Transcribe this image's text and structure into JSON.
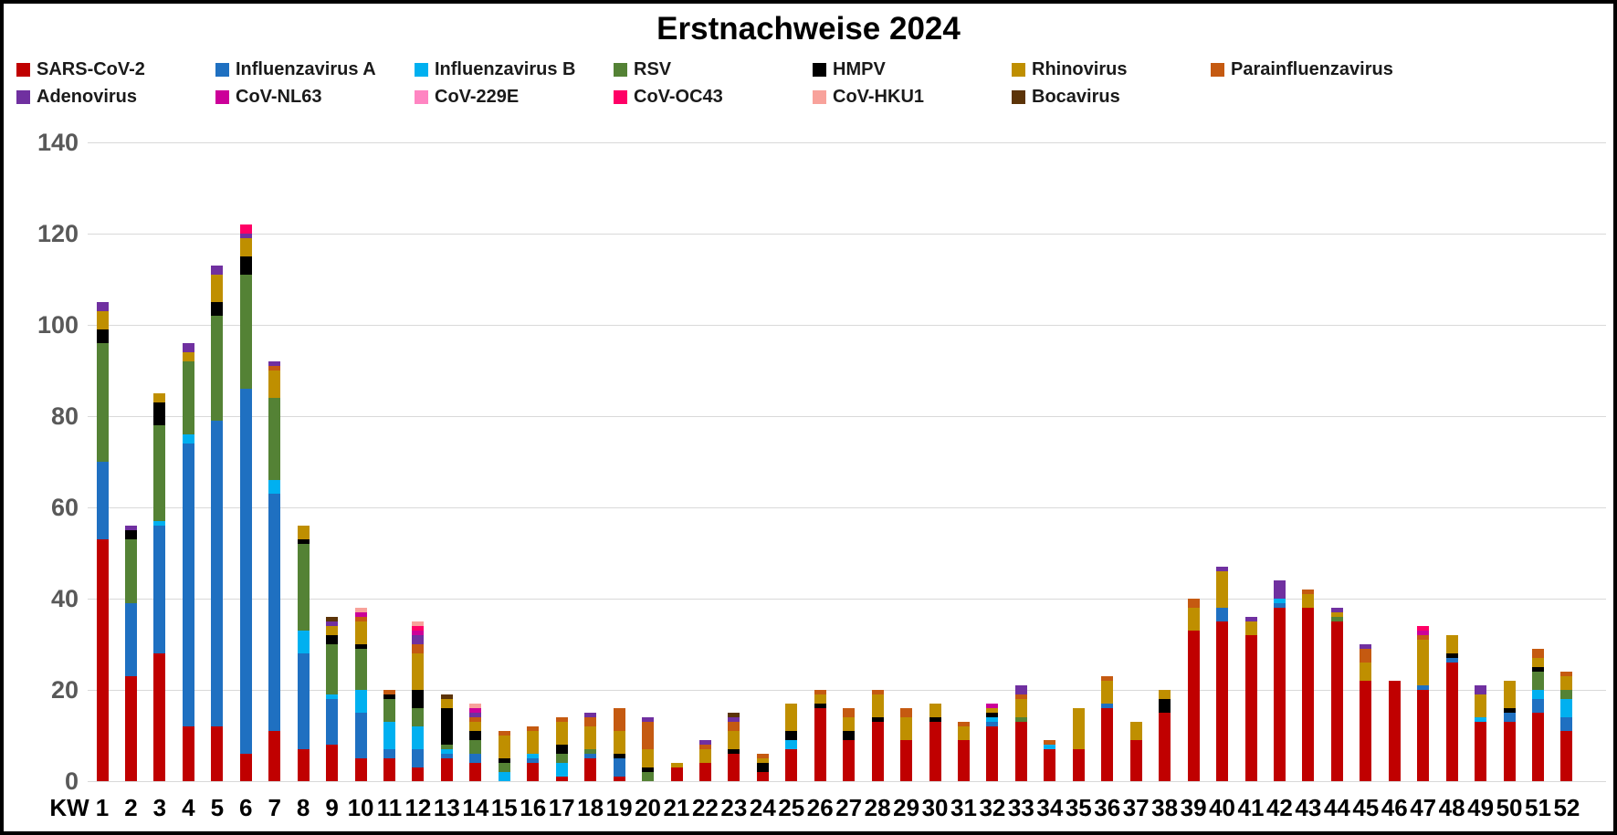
{
  "title": "Erstnachweise 2024",
  "y_axis": {
    "min": 0,
    "max": 140,
    "step": 20,
    "ticks": [
      0,
      20,
      40,
      60,
      80,
      100,
      120,
      140
    ]
  },
  "x_axis": {
    "prefix": "KW",
    "weeks": [
      1,
      2,
      3,
      4,
      5,
      6,
      7,
      8,
      9,
      10,
      11,
      12,
      13,
      14,
      15,
      16,
      17,
      18,
      19,
      20,
      21,
      22,
      23,
      24,
      25,
      26,
      27,
      28,
      29,
      30,
      31,
      32,
      33,
      34,
      35,
      36,
      37,
      38,
      39,
      40,
      41,
      42,
      43,
      44,
      45,
      46,
      47,
      48,
      49,
      50,
      51,
      52
    ]
  },
  "colors": {
    "gridline": "#d9d9d9",
    "y_label": "#595959",
    "x_label": "#000000"
  },
  "chart_data": {
    "type": "bar",
    "stacked": true,
    "title": "Erstnachweise 2024",
    "xlabel": "KW",
    "ylabel": "",
    "ylim": [
      0,
      140
    ],
    "grid": true,
    "legend_position": "top",
    "categories": [
      1,
      2,
      3,
      4,
      5,
      6,
      7,
      8,
      9,
      10,
      11,
      12,
      13,
      14,
      15,
      16,
      17,
      18,
      19,
      20,
      21,
      22,
      23,
      24,
      25,
      26,
      27,
      28,
      29,
      30,
      31,
      32,
      33,
      34,
      35,
      36,
      37,
      38,
      39,
      40,
      41,
      42,
      43,
      44,
      45,
      46,
      47,
      48,
      49,
      50,
      51,
      52
    ],
    "series": [
      {
        "name": "SARS-CoV-2",
        "color": "#C00000",
        "values": [
          53,
          23,
          28,
          12,
          12,
          6,
          11,
          7,
          8,
          5,
          5,
          3,
          5,
          4,
          0,
          4,
          1,
          5,
          1,
          0,
          3,
          4,
          6,
          2,
          7,
          16,
          9,
          13,
          9,
          13,
          9,
          12,
          13,
          7,
          7,
          16,
          9,
          15,
          33,
          35,
          32,
          38,
          38,
          35,
          22,
          22,
          20,
          26,
          13,
          13,
          15,
          11
        ]
      },
      {
        "name": "Influenzavirus A",
        "color": "#1F70C1",
        "values": [
          17,
          16,
          28,
          62,
          67,
          80,
          52,
          21,
          10,
          10,
          2,
          4,
          1,
          2,
          0,
          1,
          0,
          1,
          4,
          0,
          0,
          0,
          0,
          0,
          0,
          0,
          0,
          0,
          0,
          0,
          0,
          1,
          0,
          0,
          0,
          1,
          0,
          0,
          0,
          3,
          0,
          1,
          0,
          0,
          0,
          0,
          1,
          1,
          0,
          2,
          3,
          3
        ]
      },
      {
        "name": "Influenzavirus B",
        "color": "#00B0F0",
        "values": [
          0,
          0,
          1,
          2,
          0,
          0,
          3,
          5,
          1,
          5,
          6,
          5,
          1,
          0,
          2,
          1,
          3,
          0,
          0,
          0,
          0,
          0,
          0,
          0,
          2,
          0,
          0,
          0,
          0,
          0,
          0,
          1,
          0,
          1,
          0,
          0,
          0,
          0,
          0,
          0,
          0,
          1,
          0,
          0,
          0,
          0,
          0,
          0,
          1,
          0,
          2,
          4
        ]
      },
      {
        "name": "RSV",
        "color": "#548235",
        "values": [
          26,
          14,
          21,
          16,
          23,
          25,
          18,
          19,
          11,
          9,
          5,
          4,
          1,
          3,
          2,
          0,
          2,
          1,
          0,
          2,
          0,
          0,
          0,
          0,
          0,
          0,
          0,
          0,
          0,
          0,
          0,
          0,
          1,
          0,
          0,
          0,
          0,
          0,
          0,
          0,
          0,
          0,
          0,
          1,
          0,
          0,
          0,
          0,
          0,
          0,
          4,
          2
        ]
      },
      {
        "name": "HMPV",
        "color": "#000000",
        "values": [
          3,
          2,
          5,
          0,
          3,
          4,
          0,
          1,
          2,
          1,
          1,
          4,
          8,
          2,
          1,
          0,
          2,
          0,
          1,
          1,
          0,
          0,
          1,
          2,
          2,
          1,
          2,
          1,
          0,
          1,
          0,
          1,
          0,
          0,
          0,
          0,
          0,
          3,
          0,
          0,
          0,
          0,
          0,
          0,
          0,
          0,
          0,
          1,
          0,
          1,
          1,
          0
        ]
      },
      {
        "name": "Rhinovirus",
        "color": "#BF8F00",
        "values": [
          4,
          0,
          2,
          2,
          6,
          4,
          6,
          3,
          2,
          5,
          0,
          8,
          2,
          2,
          5,
          5,
          5,
          5,
          5,
          4,
          1,
          3,
          4,
          1,
          6,
          2,
          3,
          5,
          5,
          3,
          3,
          1,
          4,
          0,
          9,
          5,
          4,
          2,
          5,
          8,
          3,
          0,
          3,
          1,
          4,
          0,
          10,
          4,
          5,
          6,
          2,
          3
        ]
      },
      {
        "name": "Parainfluenzavirus",
        "color": "#C55A11",
        "values": [
          0,
          0,
          0,
          0,
          0,
          0,
          1,
          0,
          0,
          1,
          1,
          2,
          0,
          1,
          1,
          1,
          1,
          2,
          5,
          6,
          0,
          1,
          2,
          1,
          0,
          1,
          2,
          1,
          2,
          0,
          1,
          0,
          1,
          1,
          0,
          1,
          0,
          0,
          2,
          0,
          0,
          0,
          1,
          0,
          3,
          0,
          1,
          0,
          0,
          0,
          2,
          1
        ]
      },
      {
        "name": "Adenovirus",
        "color": "#7030A0",
        "values": [
          2,
          1,
          0,
          2,
          2,
          1,
          1,
          0,
          1,
          0,
          0,
          2,
          0,
          1,
          0,
          0,
          0,
          1,
          0,
          1,
          0,
          1,
          1,
          0,
          0,
          0,
          0,
          0,
          0,
          0,
          0,
          0,
          2,
          0,
          0,
          0,
          0,
          0,
          0,
          1,
          1,
          4,
          0,
          1,
          1,
          0,
          0,
          0,
          2,
          0,
          0,
          0
        ]
      },
      {
        "name": "CoV-NL63",
        "color": "#CC0099",
        "values": [
          0,
          0,
          0,
          0,
          0,
          0,
          0,
          0,
          0,
          1,
          0,
          1,
          0,
          1,
          0,
          0,
          0,
          0,
          0,
          0,
          0,
          0,
          0,
          0,
          0,
          0,
          0,
          0,
          0,
          0,
          0,
          1,
          0,
          0,
          0,
          0,
          0,
          0,
          0,
          0,
          0,
          0,
          0,
          0,
          0,
          0,
          1,
          0,
          0,
          0,
          0,
          0
        ]
      },
      {
        "name": "CoV-229E",
        "color": "#FF85C2",
        "values": [
          0,
          0,
          0,
          0,
          0,
          0,
          0,
          0,
          0,
          0,
          0,
          0,
          0,
          0,
          0,
          0,
          0,
          0,
          0,
          0,
          0,
          0,
          0,
          0,
          0,
          0,
          0,
          0,
          0,
          0,
          0,
          0,
          0,
          0,
          0,
          0,
          0,
          0,
          0,
          0,
          0,
          0,
          0,
          0,
          0,
          0,
          0,
          0,
          0,
          0,
          0,
          0
        ]
      },
      {
        "name": "CoV-OC43",
        "color": "#FF0066",
        "values": [
          0,
          0,
          0,
          0,
          0,
          2,
          0,
          0,
          0,
          0,
          0,
          1,
          0,
          0,
          0,
          0,
          0,
          0,
          0,
          0,
          0,
          0,
          0,
          0,
          0,
          0,
          0,
          0,
          0,
          0,
          0,
          0,
          0,
          0,
          0,
          0,
          0,
          0,
          0,
          0,
          0,
          0,
          0,
          0,
          0,
          0,
          1,
          0,
          0,
          0,
          0,
          0
        ]
      },
      {
        "name": "CoV-HKU1",
        "color": "#F8A29B",
        "values": [
          0,
          0,
          0,
          0,
          0,
          0,
          0,
          0,
          0,
          1,
          0,
          1,
          0,
          1,
          0,
          0,
          0,
          0,
          0,
          0,
          0,
          0,
          0,
          0,
          0,
          0,
          0,
          0,
          0,
          0,
          0,
          0,
          0,
          0,
          0,
          0,
          0,
          0,
          0,
          0,
          0,
          0,
          0,
          0,
          0,
          0,
          0,
          0,
          0,
          0,
          0,
          0
        ]
      },
      {
        "name": "Bocavirus",
        "color": "#5C3408",
        "values": [
          0,
          0,
          0,
          0,
          0,
          0,
          0,
          0,
          1,
          0,
          0,
          0,
          1,
          0,
          0,
          0,
          0,
          0,
          0,
          0,
          0,
          0,
          1,
          0,
          0,
          0,
          0,
          0,
          0,
          0,
          0,
          0,
          0,
          0,
          0,
          0,
          0,
          0,
          0,
          0,
          0,
          0,
          0,
          0,
          0,
          0,
          0,
          0,
          0,
          0,
          0,
          0
        ]
      }
    ]
  }
}
